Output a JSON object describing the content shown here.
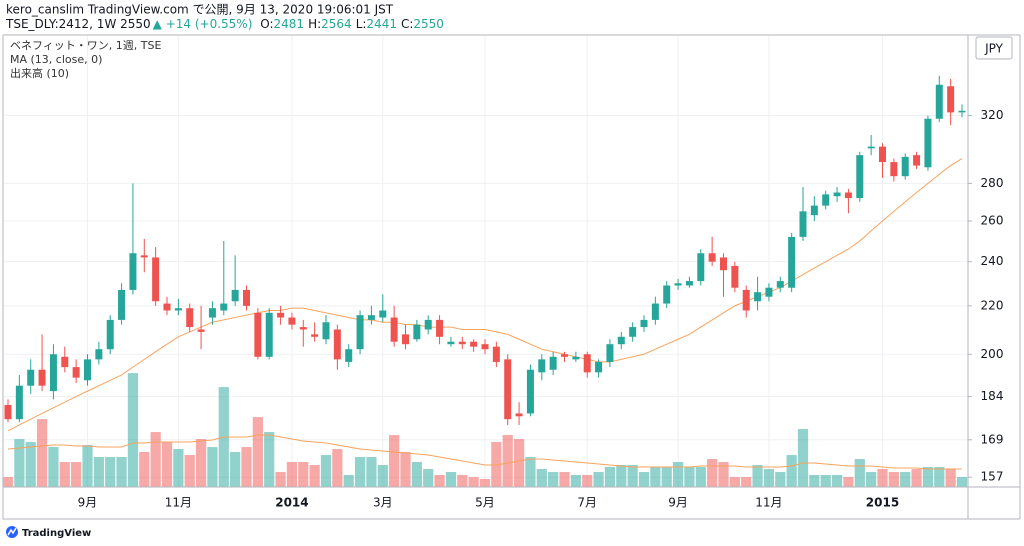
{
  "chart_data": {
    "type": "candlestick",
    "title": "kero_canslim TradingView.com で公開, 9月 13, 2020 19:06:01 JST",
    "subtitle": "TSE_DLY:2412, 1W 2550",
    "change": "▲ +14 (+0.55%)",
    "quote": [
      {
        "label": "O:",
        "value": 2481
      },
      {
        "label": "H:",
        "value": 2564
      },
      {
        "label": "L:",
        "value": 2441
      },
      {
        "label": "C:",
        "value": 2550
      }
    ],
    "currency": "JPY",
    "brand": "TradingView",
    "log_scale": true,
    "grid": true,
    "ylim": [
      154,
      375
    ],
    "yticks": [
      157,
      169,
      184,
      200,
      220,
      240,
      260,
      280,
      320
    ],
    "categories": [
      null,
      null,
      null,
      null,
      null,
      null,
      null,
      "9月",
      null,
      null,
      null,
      null,
      null,
      null,
      null,
      "11月",
      null,
      null,
      null,
      null,
      null,
      null,
      null,
      null,
      null,
      "2014",
      null,
      null,
      null,
      null,
      null,
      null,
      null,
      "3月",
      null,
      null,
      null,
      null,
      null,
      null,
      null,
      null,
      "5月",
      null,
      null,
      null,
      null,
      null,
      null,
      null,
      null,
      "7月",
      null,
      null,
      null,
      null,
      null,
      null,
      null,
      "9月",
      null,
      null,
      null,
      null,
      null,
      null,
      null,
      "11月",
      null,
      null,
      null,
      null,
      null,
      null,
      null,
      null,
      null,
      "2015",
      null,
      null,
      null,
      null,
      null,
      null,
      null
    ],
    "series": [
      {
        "name": "ベネフィット・ワン, 1週, TSE",
        "up_color": "#26a69a",
        "down_color": "#ef5350",
        "open": [
          181,
          176,
          188,
          194,
          186,
          199,
          195,
          190,
          198,
          202,
          214,
          227,
          243,
          242,
          221,
          218,
          219,
          210,
          215,
          218,
          222,
          227,
          217,
          199,
          217,
          215,
          211,
          208,
          206,
          210,
          197,
          202,
          214,
          215,
          215,
          208,
          206,
          210,
          214,
          204,
          205,
          205,
          204,
          203,
          198,
          178,
          178,
          193,
          194,
          200,
          198,
          200,
          193,
          197,
          204,
          207,
          211,
          214,
          221,
          229,
          229,
          231,
          244,
          242,
          238,
          227,
          222,
          224,
          228,
          228,
          252,
          263,
          268,
          273,
          275,
          272,
          300,
          301,
          292,
          284,
          296,
          289,
          318,
          339,
          322
        ],
        "high": [
          183,
          192,
          198,
          208,
          204,
          203,
          198,
          200,
          205,
          216,
          230,
          280,
          251,
          247,
          224,
          223,
          221,
          220,
          222,
          250,
          243,
          229,
          219,
          219,
          220,
          217,
          214,
          213,
          216,
          212,
          204,
          218,
          220,
          225,
          220,
          212,
          214,
          216,
          216,
          207,
          207,
          206,
          206,
          205,
          200,
          182,
          196,
          200,
          201,
          201,
          201,
          201,
          198,
          206,
          209,
          213,
          216,
          224,
          231,
          232,
          233,
          246,
          252,
          244,
          240,
          229,
          233,
          230,
          233,
          254,
          278,
          273,
          276,
          278,
          277,
          298,
          308,
          303,
          294,
          297,
          298,
          320,
          346,
          344,
          327
        ],
        "low": [
          175,
          175,
          185,
          186,
          183,
          193,
          189,
          188,
          196,
          200,
          212,
          225,
          235,
          220,
          216,
          216,
          209,
          202,
          212,
          216,
          220,
          218,
          198,
          198,
          212,
          210,
          203,
          205,
          204,
          194,
          195,
          200,
          212,
          213,
          203,
          202,
          205,
          208,
          204,
          203,
          202,
          201,
          200,
          195,
          174,
          174,
          177,
          190,
          192,
          197,
          197,
          191,
          191,
          195,
          202,
          205,
          209,
          212,
          219,
          227,
          228,
          229,
          238,
          224,
          226,
          215,
          218,
          222,
          226,
          226,
          250,
          260,
          266,
          270,
          264,
          270,
          296,
          283,
          281,
          282,
          288,
          287,
          316,
          314,
          319
        ],
        "close": [
          176,
          188,
          194,
          188,
          200,
          195,
          191,
          198,
          202,
          214,
          227,
          244,
          242,
          222,
          218,
          219,
          211,
          209,
          219,
          221,
          227,
          220,
          199,
          217,
          215,
          212,
          210,
          207,
          213,
          198,
          202,
          216,
          216,
          218,
          205,
          204,
          212,
          214,
          207,
          205,
          204,
          203,
          202,
          197,
          176,
          177,
          194,
          198,
          199,
          199,
          199,
          193,
          197,
          204,
          207,
          211,
          214,
          221,
          229,
          230,
          231,
          244,
          240,
          236,
          228,
          218,
          226,
          228,
          231,
          252,
          265,
          268,
          274,
          275,
          272,
          296,
          301,
          292,
          284,
          295,
          290,
          318,
          340,
          322,
          323
        ]
      },
      {
        "name": "MA (13, close, 0)",
        "color": "#f7a35c",
        "values": [
          172,
          174,
          176,
          178,
          180,
          182,
          184,
          186,
          188,
          190,
          192,
          195,
          198,
          201,
          204,
          207,
          209,
          211,
          213,
          214,
          215,
          216,
          217,
          218,
          218,
          219,
          219,
          218,
          217,
          216,
          215,
          214,
          214,
          213,
          213,
          212,
          212,
          211,
          211,
          211,
          210,
          210,
          210,
          209,
          208,
          206,
          204,
          202,
          201,
          200,
          199,
          198,
          197,
          197,
          198,
          199,
          200,
          202,
          204,
          206,
          208,
          211,
          214,
          217,
          220,
          222,
          224,
          226,
          228,
          231,
          234,
          237,
          240,
          243,
          246,
          250,
          255,
          260,
          265,
          270,
          275,
          280,
          285,
          290,
          294
        ]
      },
      {
        "name": "出来高 (10)",
        "color": "#f7a35c",
        "values": [
          10,
          48,
          45,
          68,
          40,
          25,
          25,
          42,
          30,
          30,
          30,
          114,
          35,
          55,
          45,
          38,
          32,
          48,
          40,
          100,
          35,
          40,
          70,
          55,
          15,
          25,
          25,
          22,
          32,
          38,
          12,
          30,
          30,
          22,
          52,
          35,
          25,
          18,
          12,
          15,
          12,
          10,
          8,
          45,
          52,
          48,
          30,
          18,
          15,
          15,
          12,
          12,
          15,
          20,
          22,
          22,
          15,
          20,
          20,
          25,
          20,
          20,
          28,
          25,
          10,
          10,
          22,
          18,
          15,
          32,
          58,
          12,
          12,
          12,
          10,
          28,
          15,
          18,
          15,
          15,
          18,
          20,
          20,
          18,
          10
        ],
        "ma": [
          38,
          39,
          40,
          41,
          42,
          42,
          41,
          41,
          40,
          40,
          40,
          44,
          44,
          45,
          45,
          45,
          45,
          46,
          47,
          50,
          50,
          50,
          52,
          52,
          50,
          48,
          46,
          45,
          44,
          42,
          40,
          38,
          37,
          36,
          35,
          34,
          33,
          32,
          30,
          28,
          26,
          24,
          22,
          22,
          24,
          26,
          28,
          28,
          27,
          26,
          25,
          24,
          23,
          22,
          21,
          20,
          20,
          20,
          20,
          20,
          20,
          21,
          21,
          21,
          21,
          20,
          20,
          20,
          20,
          21,
          24,
          24,
          23,
          22,
          21,
          21,
          21,
          20,
          19,
          19,
          19,
          18,
          18,
          18,
          18
        ]
      }
    ]
  }
}
